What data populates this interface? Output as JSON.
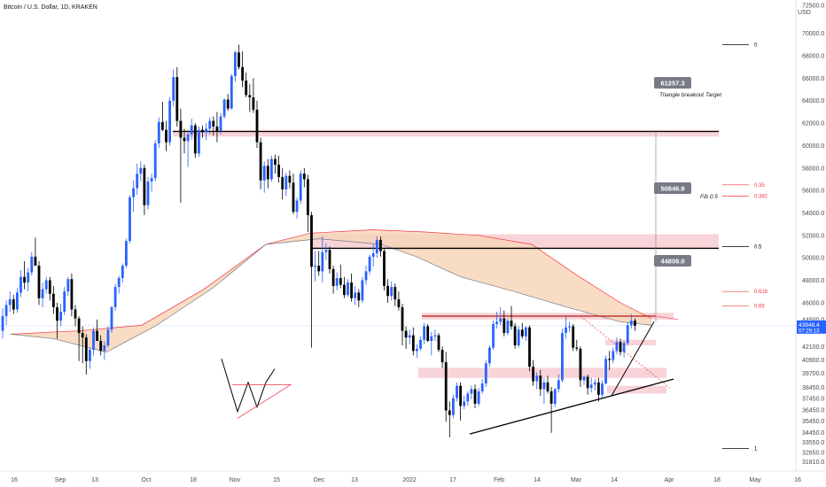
{
  "chart_data": {
    "type": "candlestick",
    "title": "Bitcoin / U.S. Dollar, 1D, KRAKEN",
    "currency": "USD",
    "ylim": [
      31000,
      72500
    ],
    "y_ticks": [
      "72500.0",
      "70000.0",
      "68000.0",
      "66000.0",
      "64000.0",
      "62000.0",
      "60000.0",
      "58000.0",
      "56000.0",
      "54000.0",
      "52000.0",
      "50000.0",
      "48000.0",
      "46000.0",
      "44500.0",
      "42100.0",
      "40900.0",
      "39700.0",
      "38450.0",
      "37450.0",
      "36450.0",
      "35450.0",
      "34450.0",
      "33550.0",
      "32650.0",
      "31810.0"
    ],
    "x_ticks": [
      "16",
      "Sep",
      "13",
      "Oct",
      "18",
      "Nov",
      "15",
      "Dec",
      "13",
      "2022",
      "17",
      "Feb",
      "14",
      "Mar",
      "14",
      "Apr",
      "18",
      "May",
      "16"
    ],
    "last_price": {
      "value": "43948.4",
      "countdown": "07:29:13"
    },
    "colors": {
      "up": "#2962ff",
      "down": "#000000",
      "zone": "#f4b8c0",
      "fib": "#f23645",
      "ma": "#f6d3b5"
    },
    "candles": [
      [
        43500,
        45500,
        42800,
        44800
      ],
      [
        44800,
        46200,
        44000,
        45800
      ],
      [
        45800,
        47000,
        45200,
        46300
      ],
      [
        46300,
        46700,
        45000,
        45400
      ],
      [
        45400,
        47300,
        45100,
        46900
      ],
      [
        46900,
        48900,
        46500,
        48300
      ],
      [
        48300,
        49700,
        47200,
        47800
      ],
      [
        47800,
        49100,
        47000,
        48700
      ],
      [
        48700,
        50500,
        48400,
        50100
      ],
      [
        50100,
        51800,
        49700,
        49300
      ],
      [
        49300,
        49700,
        45800,
        46400
      ],
      [
        46400,
        47800,
        45600,
        47200
      ],
      [
        47200,
        48300,
        46800,
        48000
      ],
      [
        48000,
        48300,
        46200,
        46800
      ],
      [
        46800,
        47500,
        45000,
        45600
      ],
      [
        45600,
        46000,
        42800,
        44400
      ],
      [
        44400,
        45900,
        43900,
        45200
      ],
      [
        45200,
        47400,
        44900,
        47000
      ],
      [
        47000,
        48300,
        46600,
        48100
      ],
      [
        48100,
        48600,
        44800,
        45400
      ],
      [
        45400,
        45800,
        43900,
        44600
      ],
      [
        44600,
        44800,
        40800,
        43300
      ],
      [
        43300,
        43900,
        40600,
        42900
      ],
      [
        42900,
        43200,
        39600,
        40800
      ],
      [
        40800,
        42000,
        40100,
        41800
      ],
      [
        41800,
        43800,
        41300,
        43500
      ],
      [
        43500,
        44500,
        42900,
        42600
      ],
      [
        42600,
        43100,
        41300,
        41700
      ],
      [
        41700,
        42600,
        40900,
        42200
      ],
      [
        42200,
        43900,
        42000,
        43600
      ],
      [
        43600,
        45700,
        43300,
        45600
      ],
      [
        45600,
        47700,
        45300,
        47400
      ],
      [
        47400,
        48400,
        46800,
        48200
      ],
      [
        48200,
        49500,
        47800,
        49300
      ],
      [
        49300,
        51700,
        49100,
        51500
      ],
      [
        51500,
        55600,
        51300,
        55400
      ],
      [
        55400,
        56900,
        54100,
        56200
      ],
      [
        56200,
        58400,
        55600,
        57500
      ],
      [
        57500,
        58600,
        56800,
        58000
      ],
      [
        58000,
        58300,
        53800,
        54700
      ],
      [
        54700,
        57200,
        54300,
        56800
      ],
      [
        56800,
        57500,
        55900,
        57100
      ],
      [
        57100,
        60500,
        56800,
        60200
      ],
      [
        60200,
        62500,
        59800,
        62100
      ],
      [
        62100,
        63900,
        61300,
        61400
      ],
      [
        61400,
        62200,
        59500,
        60300
      ],
      [
        60300,
        64300,
        60000,
        64000
      ],
      [
        64000,
        66800,
        63500,
        66100
      ],
      [
        66100,
        67000,
        61700,
        62200
      ],
      [
        62200,
        63300,
        54900,
        60700
      ],
      [
        60700,
        61500,
        59300,
        60400
      ],
      [
        60400,
        61400,
        58100,
        61000
      ],
      [
        61000,
        62400,
        60500,
        61800
      ],
      [
        61800,
        62000,
        58900,
        59300
      ],
      [
        59300,
        61700,
        59000,
        61400
      ],
      [
        61400,
        61800,
        60700,
        61200
      ],
      [
        61200,
        62000,
        60500,
        61500
      ],
      [
        61500,
        62500,
        61000,
        62200
      ],
      [
        62200,
        62600,
        60900,
        61700
      ],
      [
        61700,
        63000,
        60300,
        61300
      ],
      [
        61300,
        62900,
        61000,
        62600
      ],
      [
        62600,
        64200,
        62400,
        64100
      ],
      [
        64100,
        64600,
        63100,
        63300
      ],
      [
        63300,
        66400,
        63200,
        66200
      ],
      [
        66200,
        68500,
        65700,
        68300
      ],
      [
        68300,
        69000,
        66800,
        67000
      ],
      [
        67000,
        68400,
        65200,
        65800
      ],
      [
        65800,
        66500,
        64300,
        64500
      ],
      [
        64500,
        65500,
        63000,
        64300
      ],
      [
        64300,
        66000,
        62900,
        63200
      ],
      [
        63200,
        64000,
        59800,
        60300
      ],
      [
        60300,
        60700,
        56100,
        56900
      ],
      [
        56900,
        58600,
        55800,
        58200
      ],
      [
        58200,
        58800,
        56200,
        57000
      ],
      [
        57000,
        59100,
        56800,
        58800
      ],
      [
        58800,
        59200,
        57500,
        58300
      ],
      [
        58300,
        59100,
        56700,
        57200
      ],
      [
        57200,
        58000,
        55200,
        56100
      ],
      [
        56100,
        57600,
        55500,
        57300
      ],
      [
        57300,
        57800,
        56200,
        56700
      ],
      [
        56700,
        57500,
        53900,
        54100
      ],
      [
        54100,
        55400,
        53500,
        55100
      ],
      [
        55100,
        57800,
        54800,
        57500
      ],
      [
        57500,
        58000,
        56300,
        57000
      ],
      [
        57000,
        57400,
        52300,
        53800
      ],
      [
        53800,
        54100,
        42000,
        49200
      ],
      [
        49200,
        50600,
        47900,
        49300
      ],
      [
        49300,
        50600,
        48400,
        48800
      ],
      [
        48800,
        51900,
        47800,
        50500
      ],
      [
        50500,
        51300,
        49800,
        50700
      ],
      [
        50700,
        51000,
        48600,
        49000
      ],
      [
        49000,
        49300,
        46800,
        47500
      ],
      [
        47500,
        48700,
        47100,
        48200
      ],
      [
        48200,
        49400,
        47300,
        47600
      ],
      [
        47600,
        48300,
        46400,
        46700
      ],
      [
        46700,
        48100,
        46500,
        47800
      ],
      [
        47800,
        48600,
        46100,
        46400
      ],
      [
        46400,
        47500,
        45800,
        46900
      ],
      [
        46900,
        47200,
        45600,
        46200
      ],
      [
        46200,
        48300,
        46000,
        48000
      ],
      [
        48000,
        49300,
        47600,
        48800
      ],
      [
        48800,
        50300,
        48500,
        50100
      ],
      [
        50100,
        51200,
        49200,
        50400
      ],
      [
        50400,
        51900,
        50000,
        51600
      ],
      [
        51600,
        51900,
        50100,
        50600
      ],
      [
        50600,
        50900,
        47100,
        47500
      ],
      [
        47500,
        48100,
        46000,
        46600
      ],
      [
        46600,
        47900,
        46200,
        47400
      ],
      [
        47400,
        47700,
        45700,
        46300
      ],
      [
        46300,
        47000,
        45300,
        45600
      ],
      [
        45600,
        45900,
        42200,
        43500
      ],
      [
        43500,
        43900,
        41900,
        42900
      ],
      [
        42900,
        43600,
        42300,
        43100
      ],
      [
        43100,
        43800,
        41300,
        41700
      ],
      [
        41700,
        42300,
        41100,
        41900
      ],
      [
        41900,
        43000,
        41700,
        42700
      ],
      [
        42700,
        44200,
        42300,
        43900
      ],
      [
        43900,
        44100,
        42500,
        42600
      ],
      [
        42600,
        43400,
        41300,
        43000
      ],
      [
        43000,
        43600,
        42600,
        43100
      ],
      [
        43100,
        43300,
        41600,
        41800
      ],
      [
        41800,
        42100,
        40200,
        40700
      ],
      [
        40700,
        41600,
        35400,
        36400
      ],
      [
        36400,
        37200,
        34000,
        36000
      ],
      [
        36000,
        37800,
        35700,
        37500
      ],
      [
        37500,
        38900,
        37200,
        38600
      ],
      [
        38600,
        38900,
        35500,
        36800
      ],
      [
        36800,
        37700,
        36500,
        37200
      ],
      [
        37200,
        38100,
        36800,
        37900
      ],
      [
        37900,
        38600,
        37400,
        38300
      ],
      [
        38300,
        38700,
        36600,
        37000
      ],
      [
        37000,
        38400,
        36800,
        38100
      ],
      [
        38100,
        39200,
        37900,
        38800
      ],
      [
        38800,
        40900,
        38500,
        40600
      ],
      [
        40600,
        42200,
        40300,
        42000
      ],
      [
        42000,
        44400,
        41800,
        44100
      ],
      [
        44100,
        45200,
        43700,
        44300
      ],
      [
        44300,
        45600,
        44000,
        44600
      ],
      [
        44600,
        45300,
        43000,
        43300
      ],
      [
        43300,
        44600,
        43100,
        44400
      ],
      [
        44400,
        45700,
        43600,
        43900
      ],
      [
        43900,
        44200,
        41900,
        42200
      ],
      [
        42200,
        43900,
        42000,
        43600
      ],
      [
        43600,
        44200,
        42800,
        43000
      ],
      [
        43000,
        43900,
        42600,
        43800
      ],
      [
        43800,
        44000,
        39900,
        40300
      ],
      [
        40300,
        40900,
        38600,
        39000
      ],
      [
        39000,
        39800,
        38300,
        39500
      ],
      [
        39500,
        40000,
        37700,
        38300
      ],
      [
        38300,
        39300,
        37000,
        38900
      ],
      [
        38900,
        39500,
        37900,
        38100
      ],
      [
        38100,
        38500,
        34400,
        37000
      ],
      [
        37000,
        38400,
        36700,
        38300
      ],
      [
        38300,
        39600,
        38000,
        39100
      ],
      [
        39100,
        43700,
        38900,
        43300
      ],
      [
        43300,
        44800,
        42800,
        43800
      ],
      [
        43800,
        44300,
        43400,
        43900
      ],
      [
        43900,
        44100,
        41700,
        42000
      ],
      [
        42000,
        42700,
        41700,
        41900
      ],
      [
        41900,
        42100,
        38500,
        39100
      ],
      [
        39100,
        39500,
        38700,
        39400
      ],
      [
        39400,
        39600,
        37800,
        38400
      ],
      [
        38400,
        39300,
        38000,
        38700
      ],
      [
        38700,
        39200,
        38200,
        38900
      ],
      [
        38900,
        39300,
        37200,
        37800
      ],
      [
        37800,
        39100,
        37500,
        38800
      ],
      [
        38800,
        41300,
        38700,
        41000
      ],
      [
        41000,
        41700,
        40000,
        40900
      ],
      [
        40900,
        42000,
        40600,
        41700
      ],
      [
        41700,
        42900,
        41400,
        42500
      ],
      [
        42500,
        42800,
        41300,
        41600
      ],
      [
        41600,
        42600,
        41100,
        42400
      ],
      [
        42400,
        44300,
        42200,
        44000
      ],
      [
        44000,
        45000,
        43700,
        44400
      ],
      [
        44400,
        44600,
        43500,
        43948
      ]
    ],
    "annotations": {
      "target_label": "61257.3",
      "target_note": "Triangle breakout Target",
      "fib_label": "50846.9",
      "fib_note": "Fib 0.5",
      "resistance_label": "44808.0"
    },
    "fib_levels": [
      {
        "label": "0",
        "value": 69000
      },
      {
        "label": "0.35",
        "value": 56500
      },
      {
        "label": "0.382",
        "value": 55500
      },
      {
        "label": "0.5",
        "value": 51000
      },
      {
        "label": "0.618",
        "value": 47000
      },
      {
        "label": "0.65",
        "value": 45700
      },
      {
        "label": "1",
        "value": 33000
      }
    ]
  }
}
